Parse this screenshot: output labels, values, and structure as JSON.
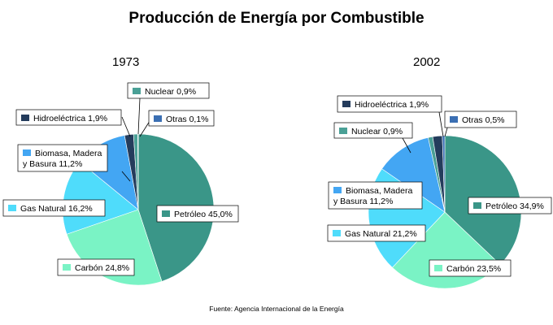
{
  "title": "Producción de Energía por Combustible",
  "source": "Fuente: Agencia Internacional de la Energía",
  "colors": {
    "petroleo": "#3a9688",
    "carbon": "#7af3c5",
    "gas": "#4fdcfb",
    "biomasa": "#43a6f3",
    "hidro": "#243c5c",
    "nuclear": "#4aa096",
    "otras": "#3b6fb3"
  },
  "chart_data": [
    {
      "type": "pie",
      "title": "1973",
      "series": [
        {
          "label": "Petróleo 45,0%",
          "value": 45.0,
          "color": "#3a9688"
        },
        {
          "label": "Carbón 24,8%",
          "value": 24.8,
          "color": "#7af3c5"
        },
        {
          "label": "Gas Natural 16,2%",
          "value": 16.2,
          "color": "#4fdcfb"
        },
        {
          "label": "Biomasa, Madera y Basura 11,2%",
          "value": 11.2,
          "color": "#43a6f3"
        },
        {
          "label": "Hidroeléctrica 1,9%",
          "value": 1.9,
          "color": "#243c5c"
        },
        {
          "label": "Nuclear 0,9%",
          "value": 0.9,
          "color": "#4aa096"
        },
        {
          "label": "Otras 0,1%",
          "value": 0.1,
          "color": "#3b6fb3"
        }
      ]
    },
    {
      "type": "pie",
      "title": "2002",
      "series": [
        {
          "label": "Petróleo 34,9%",
          "value": 34.9,
          "color": "#3a9688"
        },
        {
          "label": "Carbón 23,5%",
          "value": 23.5,
          "color": "#7af3c5"
        },
        {
          "label": "Gas Natural 21,2%",
          "value": 21.2,
          "color": "#4fdcfb"
        },
        {
          "label": "Biomasa, Madera y Basura 11,2%",
          "value": 11.2,
          "color": "#43a6f3"
        },
        {
          "label": "Nuclear 0,9%",
          "value": 0.9,
          "color": "#4aa096"
        },
        {
          "label": "Hidroeléctrica 1,9%",
          "value": 1.9,
          "color": "#243c5c"
        },
        {
          "label": "Otras 0,5%",
          "value": 0.5,
          "color": "#3b6fb3"
        }
      ]
    }
  ]
}
